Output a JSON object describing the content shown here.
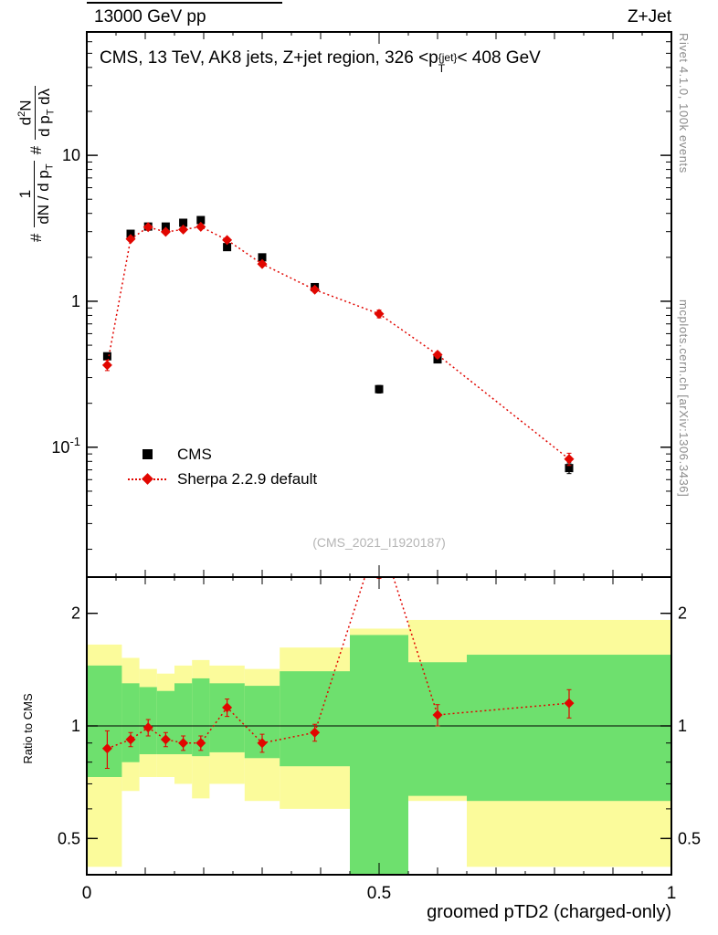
{
  "header": {
    "left": "13000 GeV pp",
    "right": "Z+Jet"
  },
  "credits": {
    "top": "Rivet 4.1.0, 100k events",
    "side": "mcplots.cern.ch [arXiv:1306.3436]"
  },
  "watermark": "(CMS_2021_I1920187)",
  "main_title": {
    "pre": "CMS, 13 TeV, AK8 jets, Z+jet region, 326 <p",
    "sup": "{jet}",
    "sub": "T",
    "post": "< 408 GeV"
  },
  "ylabel_main": {
    "hash1": "#",
    "f1num": "1",
    "f1den_a": "dN / d p",
    "f1den_sub": "T",
    "hash2": "#",
    "f2num_a": "d",
    "f2num_sup": "2",
    "f2num_b": "N",
    "f2den_a": "d p",
    "f2den_sub": "T",
    "f2den_b": " dλ"
  },
  "ratio_ylabel": "Ratio to CMS",
  "xaxis": {
    "title": "groomed pTD2 (charged-only)"
  },
  "legend": [
    {
      "label": "CMS"
    },
    {
      "label": "Sherpa 2.2.9 default"
    }
  ],
  "colors": {
    "cms": "#000000",
    "sherpa": "#e10600",
    "band_outer_yellow": "#fbfb9b",
    "band_inner_green": "#6ee06e",
    "credit_gray": "#8c8c8c",
    "watermark_gray": "#b5b5b5"
  },
  "chart_data": [
    {
      "type": "scatter",
      "panel": "main",
      "yscale": "log",
      "xlim": [
        0,
        1
      ],
      "ylim": [
        0.0129,
        70
      ],
      "yticks": [
        {
          "v": 10,
          "label": "10"
        },
        {
          "v": 1,
          "label": "1"
        },
        {
          "v": 0.1,
          "label": "10^{-1}"
        }
      ],
      "xticks": [
        {
          "v": 0,
          "label": "0"
        },
        {
          "v": 0.5,
          "label": "0.5"
        },
        {
          "v": 1,
          "label": "1"
        }
      ],
      "series": [
        {
          "name": "CMS",
          "marker": "square",
          "color": "#000000",
          "line": "none",
          "x": [
            0.035,
            0.075,
            0.105,
            0.135,
            0.165,
            0.195,
            0.24,
            0.3,
            0.39,
            0.5,
            0.6,
            0.825
          ],
          "y": [
            0.42,
            2.9,
            3.25,
            3.25,
            3.45,
            3.6,
            2.35,
            2.0,
            1.25,
            0.25,
            0.4,
            0.072
          ],
          "yerr": [
            0.02,
            0.09,
            0.09,
            0.09,
            0.09,
            0.09,
            0.07,
            0.06,
            0.04,
            0.015,
            0.02,
            0.006
          ]
        },
        {
          "name": "Sherpa 2.2.9 default",
          "marker": "diamond",
          "color": "#e10600",
          "line": "dotted",
          "x": [
            0.035,
            0.075,
            0.105,
            0.135,
            0.165,
            0.195,
            0.24,
            0.3,
            0.39,
            0.5,
            0.6,
            0.825
          ],
          "y": [
            0.365,
            2.67,
            3.22,
            2.99,
            3.1,
            3.24,
            2.63,
            1.8,
            1.2,
            0.82,
            0.43,
            0.083
          ],
          "yerr": [
            0.03,
            0.06,
            0.06,
            0.06,
            0.06,
            0.06,
            0.05,
            0.04,
            0.03,
            0.05,
            0.02,
            0.008
          ]
        }
      ]
    },
    {
      "type": "ratio",
      "panel": "ratio",
      "yscale": "log",
      "xlim": [
        0,
        1
      ],
      "ylim": [
        0.4,
        2.5
      ],
      "refline": 1,
      "yticks": [
        {
          "v": 2,
          "label": "2"
        },
        {
          "v": 1,
          "label": "1"
        },
        {
          "v": 0.5,
          "label": "0.5"
        }
      ],
      "xticks": [
        {
          "v": 0,
          "label": "0"
        },
        {
          "v": 0.5,
          "label": "0.5"
        },
        {
          "v": 1,
          "label": "1"
        }
      ],
      "bin_edges": [
        0,
        0.06,
        0.09,
        0.12,
        0.15,
        0.18,
        0.21,
        0.27,
        0.33,
        0.45,
        0.55,
        0.65,
        1.0
      ],
      "bands": [
        {
          "name": "uncertainty-outer",
          "color": "#fbfb9b",
          "lo": [
            0.42,
            0.67,
            0.73,
            0.73,
            0.7,
            0.64,
            0.7,
            0.63,
            0.6,
            0.38,
            0.63,
            0.42
          ],
          "hi": [
            1.65,
            1.52,
            1.42,
            1.38,
            1.45,
            1.5,
            1.45,
            1.42,
            1.62,
            1.82,
            1.92,
            1.92
          ]
        },
        {
          "name": "uncertainty-inner",
          "color": "#6ee06e",
          "lo": [
            0.73,
            0.8,
            0.84,
            0.84,
            0.84,
            0.83,
            0.85,
            0.82,
            0.78,
            0.38,
            0.65,
            0.63
          ],
          "hi": [
            1.45,
            1.3,
            1.27,
            1.24,
            1.3,
            1.34,
            1.3,
            1.28,
            1.4,
            1.75,
            1.48,
            1.55
          ]
        }
      ],
      "series": [
        {
          "name": "Sherpa/CMS",
          "marker": "diamond",
          "color": "#e10600",
          "line": "dotted",
          "x": [
            0.035,
            0.075,
            0.105,
            0.135,
            0.165,
            0.195,
            0.24,
            0.3,
            0.39,
            0.5,
            0.6,
            0.825
          ],
          "y": [
            0.87,
            0.92,
            0.99,
            0.92,
            0.9,
            0.9,
            1.12,
            0.9,
            0.96,
            3.28,
            1.07,
            1.15
          ],
          "yerr": [
            0.1,
            0.04,
            0.05,
            0.04,
            0.04,
            0.04,
            0.06,
            0.05,
            0.05,
            0.8,
            0.07,
            0.1
          ]
        }
      ]
    }
  ]
}
